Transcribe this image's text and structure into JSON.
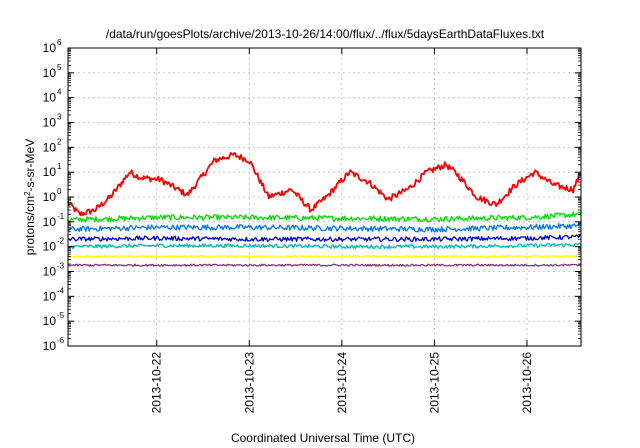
{
  "chart_data": {
    "type": "line",
    "title": "/data/run/goesPlots/archive/2013-10-26/14:00/flux/../flux/5daysEarthDataFluxes.txt",
    "xlabel": "Coordinated Universal Time (UTC)",
    "ylabel": "protons/cm²-s-sr-MeV",
    "ylabel_parts": {
      "pre": "protons/cm",
      "sup": "2",
      "post": "-s-sr-MeV"
    },
    "yscale": "log",
    "ylim": [
      1e-06,
      1000000.0
    ],
    "y_ticks": [
      {
        "base": "10",
        "exp": "-6"
      },
      {
        "base": "10",
        "exp": "-5"
      },
      {
        "base": "10",
        "exp": "-4"
      },
      {
        "base": "10",
        "exp": "-3"
      },
      {
        "base": "10",
        "exp": "-2"
      },
      {
        "base": "10",
        "exp": "-1"
      },
      {
        "base": "10",
        "exp": "0"
      },
      {
        "base": "10",
        "exp": "1"
      },
      {
        "base": "10",
        "exp": "2"
      },
      {
        "base": "10",
        "exp": "3"
      },
      {
        "base": "10",
        "exp": "4"
      },
      {
        "base": "10",
        "exp": "5"
      },
      {
        "base": "10",
        "exp": "6"
      }
    ],
    "xlim": [
      "2013-10-21 01:00",
      "2013-10-26 14:00"
    ],
    "x_ticks": [
      "2013-10-22",
      "2013-10-23",
      "2013-10-24",
      "2013-10-25",
      "2013-10-26"
    ],
    "x_tick_values": [
      "2013-10-22 00:00",
      "2013-10-23 00:00",
      "2013-10-24 00:00",
      "2013-10-25 00:00",
      "2013-10-26 00:00"
    ],
    "grid": true,
    "legend": "none",
    "series": [
      {
        "color": "#ff0000",
        "noise": 0.25,
        "x": [
          "2013-10-21 01:00",
          "2013-10-21 04:00",
          "2013-10-21 08:00",
          "2013-10-21 12:00",
          "2013-10-21 17:00",
          "2013-10-21 20:00",
          "2013-10-22 01:00",
          "2013-10-22 08:00",
          "2013-10-22 15:00",
          "2013-10-22 20:00",
          "2013-10-23 00:00",
          "2013-10-23 05:00",
          "2013-10-23 11:00",
          "2013-10-23 16:00",
          "2013-10-23 20:00",
          "2013-10-24 02:00",
          "2013-10-24 07:00",
          "2013-10-24 12:00",
          "2013-10-24 17:00",
          "2013-10-24 22:00",
          "2013-10-25 03:00",
          "2013-10-25 06:00",
          "2013-10-25 11:00",
          "2013-10-25 16:00",
          "2013-10-25 21:00",
          "2013-10-26 02:00",
          "2013-10-26 07:00",
          "2013-10-26 12:00",
          "2013-10-26 14:00"
        ],
        "y": [
          0.6,
          0.2,
          0.3,
          1.0,
          10,
          6,
          5,
          1.2,
          30,
          50,
          30,
          1.0,
          2.0,
          0.3,
          1.0,
          10,
          4,
          0.8,
          2.0,
          10,
          20,
          8,
          1.0,
          0.5,
          3,
          10,
          3,
          2.0,
          10
        ]
      },
      {
        "color": "#00dd00",
        "noise": 0.22,
        "x": [
          "2013-10-21 01:00",
          "2013-10-22 00:00",
          "2013-10-23 00:00",
          "2013-10-24 00:00",
          "2013-10-25 00:00",
          "2013-10-26 00:00",
          "2013-10-26 14:00"
        ],
        "y": [
          0.12,
          0.15,
          0.15,
          0.14,
          0.13,
          0.15,
          0.2
        ]
      },
      {
        "color": "#0077ee",
        "noise": 0.22,
        "x": [
          "2013-10-21 01:00",
          "2013-10-22 00:00",
          "2013-10-23 00:00",
          "2013-10-24 00:00",
          "2013-10-25 00:00",
          "2013-10-26 00:00",
          "2013-10-26 14:00"
        ],
        "y": [
          0.05,
          0.06,
          0.06,
          0.055,
          0.05,
          0.06,
          0.07
        ]
      },
      {
        "color": "#00bbbb",
        "noise": 0.15,
        "x": [
          "2013-10-21 01:00",
          "2013-10-22 00:00",
          "2013-10-23 00:00",
          "2013-10-24 00:00",
          "2013-10-25 00:00",
          "2013-10-26 00:00",
          "2013-10-26 14:00"
        ],
        "y": [
          0.01,
          0.011,
          0.011,
          0.01,
          0.01,
          0.011,
          0.012
        ]
      },
      {
        "color": "#0000cc",
        "noise": 0.18,
        "x": [
          "2013-10-21 01:00",
          "2013-10-22 00:00",
          "2013-10-23 00:00",
          "2013-10-24 00:00",
          "2013-10-25 00:00",
          "2013-10-26 00:00",
          "2013-10-26 14:00"
        ],
        "y": [
          0.02,
          0.022,
          0.02,
          0.02,
          0.02,
          0.022,
          0.025
        ]
      },
      {
        "color": "#ffff00",
        "noise": 0.08,
        "x": [
          "2013-10-21 01:00",
          "2013-10-22 00:00",
          "2013-10-23 00:00",
          "2013-10-24 00:00",
          "2013-10-25 00:00",
          "2013-10-26 00:00",
          "2013-10-26 14:00"
        ],
        "y": [
          0.004,
          0.004,
          0.004,
          0.004,
          0.004,
          0.004,
          0.004
        ]
      },
      {
        "color": "#883377",
        "noise": 0.08,
        "x": [
          "2013-10-21 01:00",
          "2013-10-22 00:00",
          "2013-10-23 00:00",
          "2013-10-24 00:00",
          "2013-10-25 00:00",
          "2013-10-26 00:00",
          "2013-10-26 14:00"
        ],
        "y": [
          0.0018,
          0.0018,
          0.0018,
          0.0018,
          0.0018,
          0.0018,
          0.0018
        ]
      }
    ]
  }
}
